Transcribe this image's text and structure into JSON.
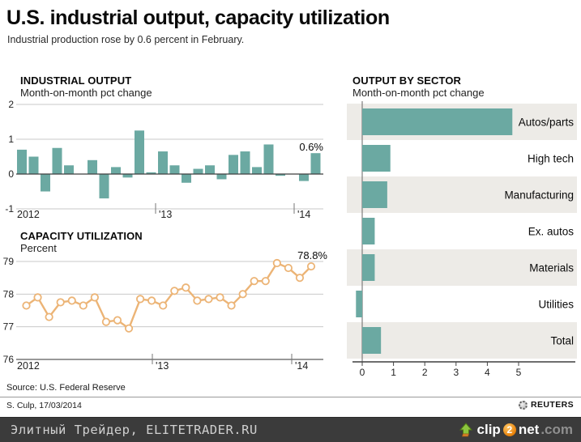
{
  "header": {
    "title": "U.S. industrial output, capacity utilization",
    "subtitle": "Industrial production rose by 0.6 percent in February."
  },
  "colors": {
    "bar_teal": "#6BA9A2",
    "line_orange": "#ECB476",
    "row_shade": "#EDEBE7",
    "grid": "#C9C9C9",
    "axis_dark": "#3F3F3F",
    "tick_gray": "#777777",
    "banner_bg": "#3B3B3B",
    "banner_text": "#D0D0D0"
  },
  "chart_data": [
    {
      "type": "bar",
      "title": "INDUSTRIAL OUTPUT",
      "subtitle": "Month-on-month pct change",
      "x_tick_labels": [
        "2012",
        "'13",
        "'14"
      ],
      "values": [
        0.7,
        0.5,
        -0.5,
        0.75,
        0.25,
        0,
        0.4,
        -0.7,
        0.2,
        -0.1,
        1.25,
        0.05,
        0.65,
        0.25,
        -0.25,
        0.15,
        0.25,
        -0.15,
        0.55,
        0.65,
        0.2,
        0.85,
        -0.05,
        0,
        -0.2,
        0.6
      ],
      "ylim": [
        -1,
        2
      ],
      "yticks": [
        2,
        1,
        0,
        -1
      ],
      "annotation": "0.6%",
      "grid": true,
      "legend": "none"
    },
    {
      "type": "line",
      "title": "CAPACITY UTILIZATION",
      "subtitle": "Percent",
      "x_tick_labels": [
        "2012",
        "'13",
        "'14"
      ],
      "values": [
        77.65,
        77.9,
        77.3,
        77.75,
        77.8,
        77.65,
        77.9,
        77.15,
        77.2,
        76.95,
        77.85,
        77.8,
        77.65,
        78.1,
        78.2,
        77.8,
        77.85,
        77.9,
        77.65,
        78.0,
        78.4,
        78.4,
        78.95,
        78.8,
        78.5,
        78.85
      ],
      "ylim": [
        76,
        79
      ],
      "yticks": [
        79,
        78,
        77,
        76
      ],
      "annotation": "78.8%",
      "grid": true,
      "legend": "none"
    },
    {
      "type": "bar-horizontal",
      "title": "OUTPUT BY SECTOR",
      "subtitle": "Month-on-month pct change",
      "categories": [
        "Autos/parts",
        "High tech",
        "Manufacturing",
        "Ex. autos",
        "Materials",
        "Utilities",
        "Total"
      ],
      "values": [
        4.8,
        0.9,
        0.8,
        0.4,
        0.4,
        -0.2,
        0.6
      ],
      "xticks": [
        0,
        1,
        2,
        3,
        4,
        5
      ],
      "xlim": [
        -0.5,
        6.9
      ],
      "grid": false,
      "legend": "none"
    }
  ],
  "footer": {
    "source": "Source: U.S. Federal Reserve",
    "credit": "S. Culp, 17/03/2014",
    "agency": "REUTERS",
    "banner": "Элитный Трейдер, ELITETRADER.RU",
    "clip2net": {
      "clip": "clip",
      "two": "2",
      "net": "net",
      "com": ".com"
    }
  }
}
